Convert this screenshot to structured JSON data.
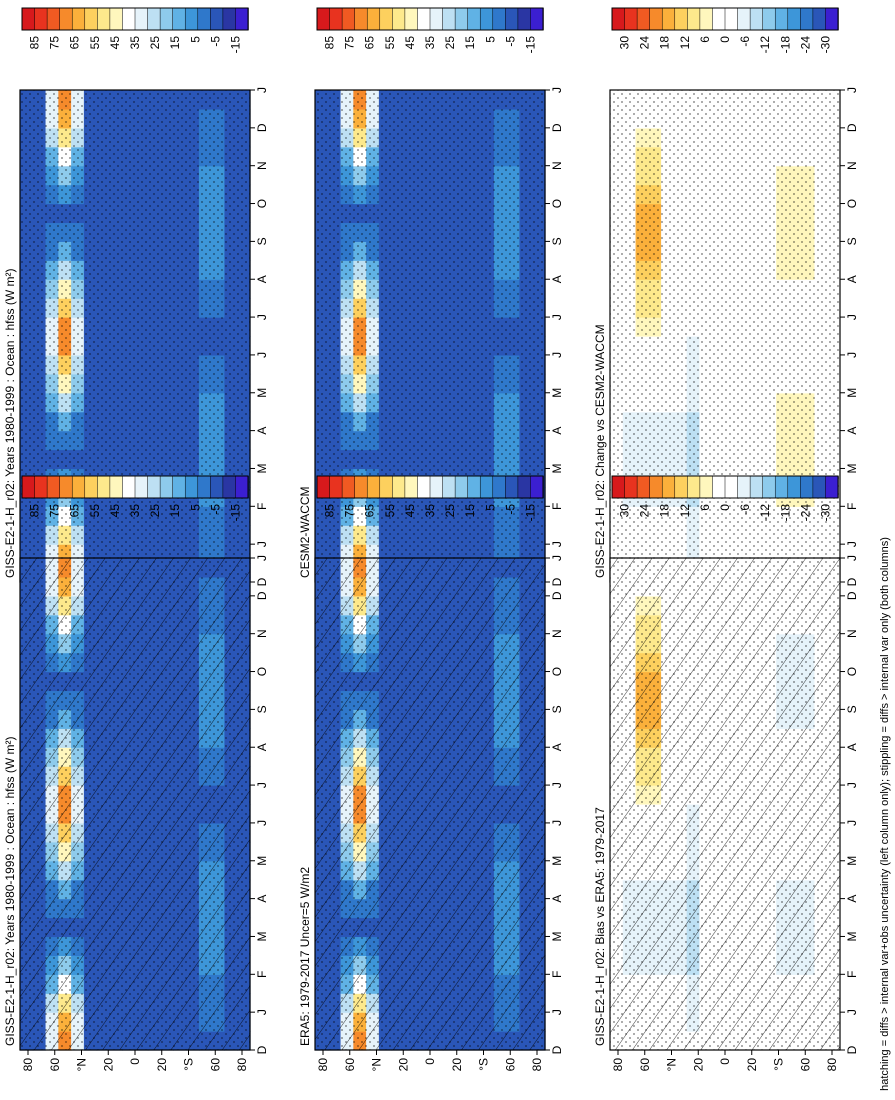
{
  "caption": "hatching = diffs > internal var+obs uncertainty (left column only); stippling = diffs > internal var only (both columns)",
  "palettes": {
    "field": [
      "#d7191c",
      "#e8331f",
      "#f05a22",
      "#f68a2b",
      "#fbb03b",
      "#fdd05e",
      "#fde98c",
      "#fff7bd",
      "#ffffff",
      "#e6f3fa",
      "#bde0f3",
      "#8ecbec",
      "#60b2e5",
      "#3d96d9",
      "#2f78cb",
      "#2a56b8",
      "#2a36a3",
      "#3b1fd1"
    ],
    "diff": [
      "#d7191c",
      "#e8331f",
      "#f05a22",
      "#f68a2b",
      "#fbb03b",
      "#fdd05e",
      "#fde98c",
      "#fff7bd",
      "#ffffff",
      "#ffffff",
      "#e6f3fa",
      "#bde0f3",
      "#8ecbec",
      "#60b2e5",
      "#3d96d9",
      "#2f78cb",
      "#2a56b8",
      "#3b1fd1"
    ]
  },
  "chart_data": [
    {
      "panel": "top-left",
      "type": "heatmap",
      "title": "GISS-E2-1-H_r02: Years 1980-1999 : Ocean : hfss (W m²)",
      "x_ticks": [
        "D",
        "J",
        "F",
        "M",
        "A",
        "M",
        "J",
        "J",
        "A",
        "S",
        "O",
        "N",
        "D",
        "J"
      ],
      "y_ticks": [
        "80",
        "60",
        "°N",
        "20",
        "0",
        "20",
        "°S",
        "60",
        "80"
      ],
      "colorbar_labels": [
        "85",
        "75",
        "65",
        "55",
        "45",
        "35",
        "25",
        "15",
        "5",
        "-5",
        "-15"
      ],
      "color_scale": "field",
      "hatching": true,
      "stippling": true
    },
    {
      "panel": "top-right",
      "type": "heatmap",
      "title": "GISS-E2-1-H_r02: Years 1980-1999 : Ocean : hfss (W m²)",
      "x_ticks": [
        "D",
        "J",
        "F",
        "M",
        "A",
        "M",
        "J",
        "J",
        "A",
        "S",
        "O",
        "N",
        "D",
        "J"
      ],
      "y_ticks": [
        "80",
        "60",
        "°N",
        "20",
        "0",
        "20",
        "°S",
        "60",
        "80"
      ],
      "colorbar_labels": [
        "85",
        "75",
        "65",
        "55",
        "45",
        "35",
        "25",
        "15",
        "5",
        "-5",
        "-15"
      ],
      "color_scale": "field",
      "hatching": false,
      "stippling": true
    },
    {
      "panel": "middle-left",
      "type": "heatmap",
      "title": "ERA5: 1979-2017 Uncer=5 W/m2",
      "x_ticks": [
        "D",
        "J",
        "F",
        "M",
        "A",
        "M",
        "J",
        "J",
        "A",
        "S",
        "O",
        "N",
        "D",
        "J"
      ],
      "y_ticks": [
        "80",
        "60",
        "°N",
        "20",
        "0",
        "20",
        "°S",
        "60",
        "80"
      ],
      "colorbar_labels": [
        "85",
        "75",
        "65",
        "55",
        "45",
        "35",
        "25",
        "15",
        "5",
        "-5",
        "-15"
      ],
      "color_scale": "field",
      "hatching": true,
      "stippling": true
    },
    {
      "panel": "middle-right",
      "type": "heatmap",
      "title": "CESM2-WACCM",
      "x_ticks": [
        "D",
        "J",
        "F",
        "M",
        "A",
        "M",
        "J",
        "J",
        "A",
        "S",
        "O",
        "N",
        "D",
        "J"
      ],
      "y_ticks": [
        "80",
        "60",
        "°N",
        "20",
        "0",
        "20",
        "°S",
        "60",
        "80"
      ],
      "colorbar_labels": [
        "85",
        "75",
        "65",
        "55",
        "45",
        "35",
        "25",
        "15",
        "5",
        "-5",
        "-15"
      ],
      "color_scale": "field",
      "hatching": false,
      "stippling": true
    },
    {
      "panel": "bottom-left",
      "type": "heatmap",
      "title": "GISS-E2-1-H_r02: Bias vs ERA5: 1979-2017",
      "x_ticks": [
        "D",
        "J",
        "F",
        "M",
        "A",
        "M",
        "J",
        "J",
        "A",
        "S",
        "O",
        "N",
        "D",
        "J"
      ],
      "y_ticks": [
        "80",
        "60",
        "°N",
        "20",
        "0",
        "20",
        "°S",
        "60",
        "80"
      ],
      "colorbar_labels": [
        "30",
        "24",
        "18",
        "12",
        "6",
        "0",
        "-6",
        "-12",
        "-18",
        "-24",
        "-30"
      ],
      "color_scale": "diff",
      "hatching": true,
      "stippling": true
    },
    {
      "panel": "bottom-right",
      "type": "heatmap",
      "title": "GISS-E2-1-H_r02: Change vs CESM2-WACCM",
      "x_ticks": [
        "D",
        "J",
        "F",
        "M",
        "A",
        "M",
        "J",
        "J",
        "A",
        "S",
        "O",
        "N",
        "D",
        "J"
      ],
      "y_ticks": [
        "80",
        "60",
        "°N",
        "20",
        "0",
        "20",
        "°S",
        "60",
        "80"
      ],
      "colorbar_labels": [
        "30",
        "24",
        "18",
        "12",
        "6",
        "0",
        "-6",
        "-12",
        "-18",
        "-24",
        "-30"
      ],
      "color_scale": "diff",
      "hatching": false,
      "stippling": true
    }
  ]
}
